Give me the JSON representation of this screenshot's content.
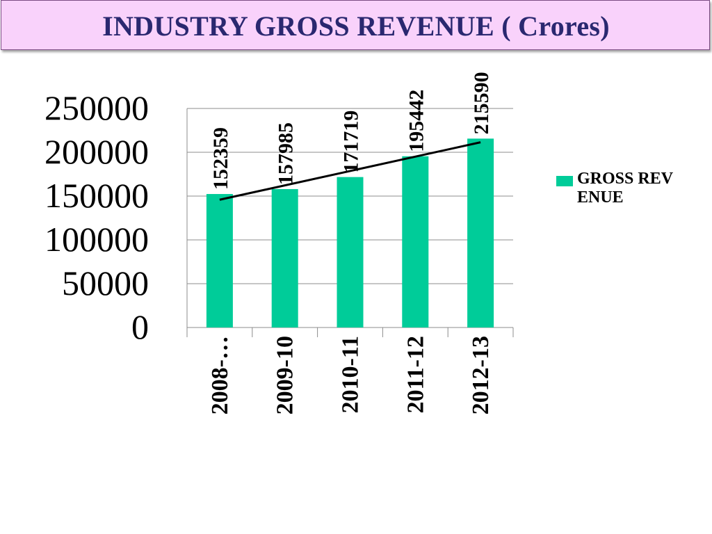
{
  "title": "INDUSTRY GROSS REVENUE ( Crores)",
  "colors": {
    "bar": "#00cc99",
    "title_bg": "#f9d2fb",
    "title_text": "#2a2870",
    "grid": "#8c8c8c",
    "trendline": "#000000"
  },
  "chart_data": {
    "type": "bar",
    "categories": [
      "2008-…",
      "2009-10",
      "2010-11",
      "2011-12",
      "2012-13"
    ],
    "series": [
      {
        "name": "GROSS REVENUE",
        "values": [
          152359,
          157985,
          171719,
          195442,
          215590
        ],
        "data_labels": [
          "152359",
          "157985",
          "171719",
          "195442",
          "215590"
        ]
      }
    ],
    "trendline": {
      "type": "linear"
    },
    "ylim": [
      0,
      250000
    ],
    "y_ticks": [
      0,
      50000,
      100000,
      150000,
      200000,
      250000
    ],
    "y_tick_labels": [
      "0",
      "50000",
      "100000",
      "150000",
      "200000",
      "250000"
    ],
    "gridlines": true,
    "legend": "right",
    "xlabel": "",
    "ylabel": ""
  }
}
